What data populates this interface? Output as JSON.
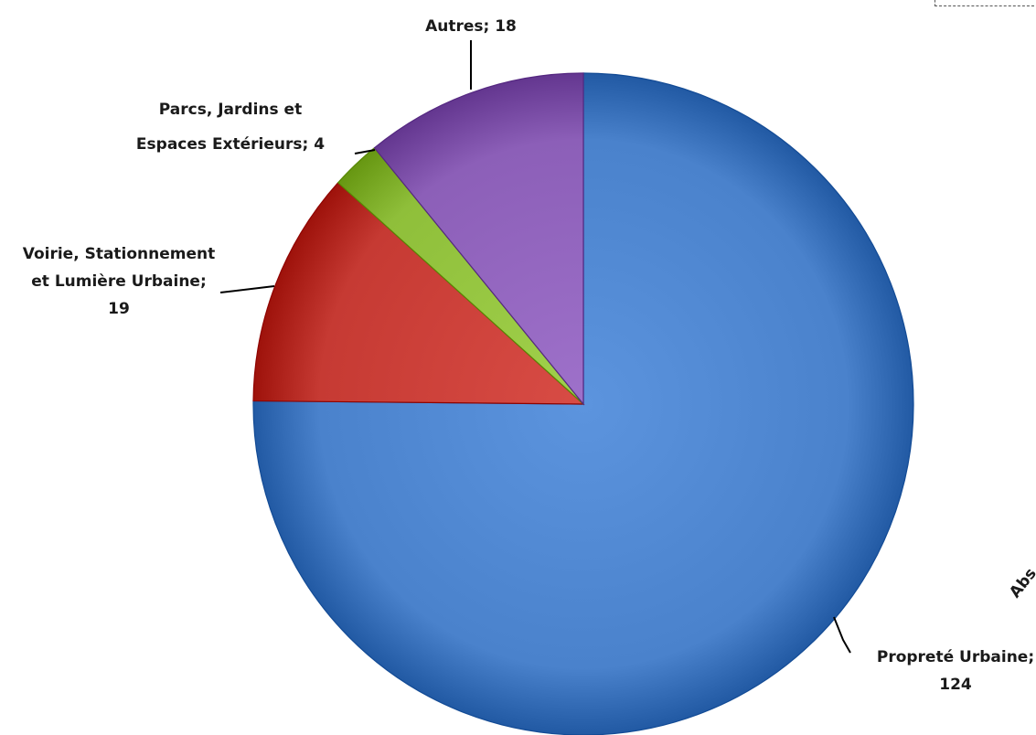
{
  "chart_data": {
    "type": "pie",
    "slices": [
      {
        "label": "Propreté Urbaine",
        "value": 124,
        "color": "#4a82cc",
        "label_lines": [
          "Propreté Urbaine;",
          "124"
        ]
      },
      {
        "label": "Voirie, Stationnement et Lumière Urbaine",
        "value": 19,
        "color": "#c63a33",
        "label_lines": [
          "Voirie, Stationnement",
          "et Lumière Urbaine;",
          "19"
        ]
      },
      {
        "label": "Parcs, Jardins et Espaces Extérieurs",
        "value": 4,
        "color": "#8fbf3a",
        "label_lines": [
          "Parcs, Jardins et",
          "Espaces Extérieurs; 4"
        ]
      },
      {
        "label": "Autres",
        "value": 18,
        "color": "#8c5fb8",
        "label_lines": [
          "Autres; 18"
        ]
      }
    ],
    "legend": "none",
    "cut_text": "Abs"
  }
}
